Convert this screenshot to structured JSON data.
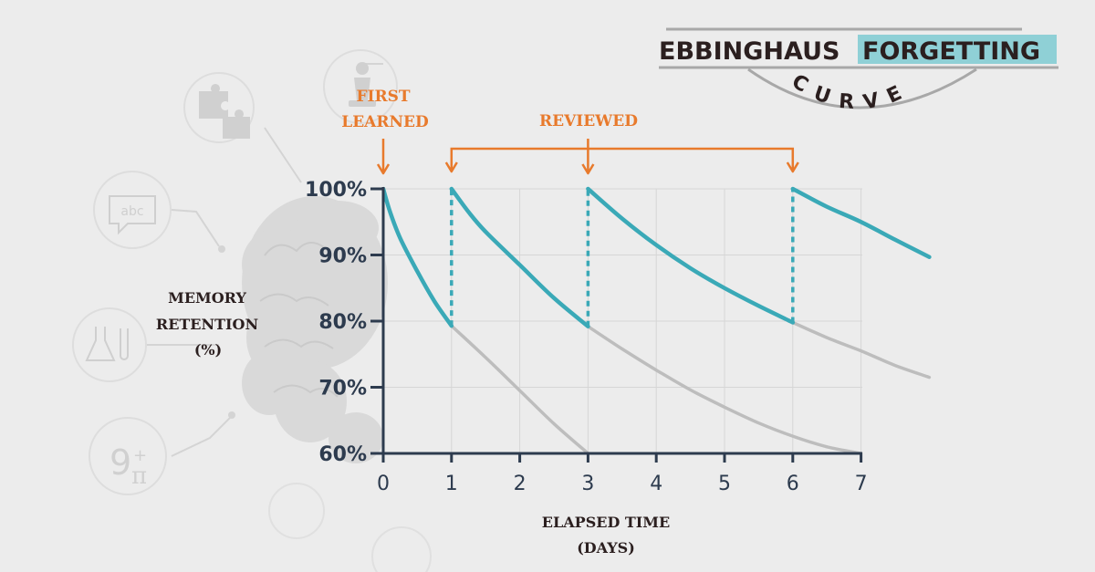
{
  "title": {
    "line1_left": "EBBINGHAUS",
    "line1_right": "FORGETTING",
    "line2": "CURVE"
  },
  "annotations": {
    "first_learned_line1": "FIRST",
    "first_learned_line2": "LEARNED",
    "reviewed": "REVIEWED"
  },
  "colors": {
    "background": "#ececec",
    "retention_curve": "#3aa9b7",
    "decay_curve": "#bdbdbd",
    "axis": "#2d3b4e",
    "annotation": "#e87a2c",
    "title_highlight": "#8fd0d6",
    "label_text": "#2b1f1f"
  },
  "decorative_icons": [
    "puzzle-icon",
    "chess-pawn-icon",
    "speech-bubble-abc-icon",
    "lab-flask-icon",
    "nine-plus-pi-icon",
    "brain-icon"
  ],
  "chart_data": {
    "type": "line",
    "xlabel_line1": "ELAPSED TIME",
    "xlabel_line2": "(DAYS)",
    "ylabel_line1": "MEMORY",
    "ylabel_line2": "RETENTION",
    "ylabel_line3": "(%)",
    "xlim": [
      0,
      7
    ],
    "ylim": [
      60,
      100
    ],
    "x_ticks": [
      "0",
      "1",
      "2",
      "3",
      "4",
      "5",
      "6",
      "7"
    ],
    "y_ticks": [
      "60%",
      "70%",
      "80%",
      "90%",
      "100%"
    ],
    "grid": true,
    "review_days": [
      0,
      1,
      3,
      6
    ],
    "series": [
      {
        "role": "retention with reviews",
        "segments": [
          {
            "x": [
              0,
              0.1,
              0.25,
              0.5,
              0.75,
              1.0
            ],
            "y": [
              100,
              96.5,
              92.5,
              87.5,
              83,
              79.3
            ]
          },
          {
            "x": [
              1,
              1.25,
              1.5,
              2.0,
              2.5,
              3.0
            ],
            "y": [
              100,
              96.5,
              93.5,
              88.5,
              83.5,
              79.2
            ]
          },
          {
            "x": [
              3,
              3.5,
              4.0,
              4.5,
              5.0,
              5.5,
              6.0
            ],
            "y": [
              100,
              95.5,
              91.5,
              88,
              85,
              82.3,
              79.8
            ]
          },
          {
            "x": [
              6,
              6.5,
              7.0,
              7.5,
              8.0
            ],
            "y": [
              100,
              97.3,
              95.0,
              92.3,
              89.7
            ]
          }
        ]
      },
      {
        "role": "decay without reviews",
        "segments": [
          {
            "x": [
              1,
              1.5,
              2.0,
              2.5,
              3.0
            ],
            "y": [
              79.3,
              74.5,
              69.5,
              64.5,
              60
            ]
          },
          {
            "x": [
              3,
              3.5,
              4.0,
              4.5,
              5.0,
              5.5,
              6.0,
              6.5,
              7.0
            ],
            "y": [
              79.2,
              75.8,
              72.6,
              69.6,
              67,
              64.6,
              62.6,
              61,
              60
            ]
          },
          {
            "x": [
              6,
              6.5,
              7.0,
              7.5,
              8.0
            ],
            "y": [
              79.8,
              77.5,
              75.5,
              73.3,
              71.5
            ]
          }
        ]
      }
    ]
  }
}
